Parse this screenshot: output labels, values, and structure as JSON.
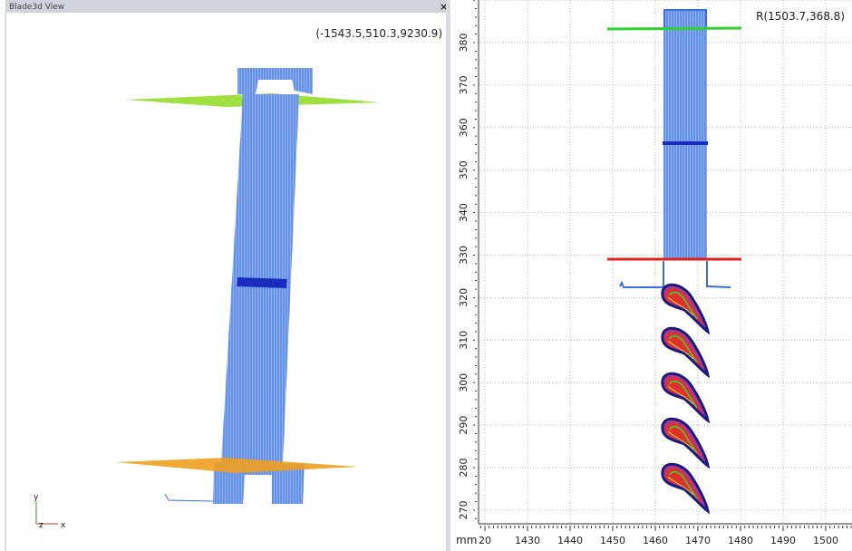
{
  "left_panel": {
    "title": "Blade3d View",
    "close": "×",
    "coordinates": "(-1543.5,510.3,9230.9)",
    "axes": {
      "y": "y",
      "z": "z",
      "x": "x"
    }
  },
  "right_panel": {
    "coordinates": "R(1503.7,368.8)",
    "unit": "mm",
    "y_ticks": [
      "380",
      "370",
      "360",
      "350",
      "340",
      "330",
      "320",
      "310",
      "300",
      "290",
      "280",
      "270"
    ],
    "x_ticks": [
      "20",
      "1430",
      "1440",
      "1450",
      "1460",
      "1470",
      "1480",
      "1490",
      "1500"
    ]
  }
}
